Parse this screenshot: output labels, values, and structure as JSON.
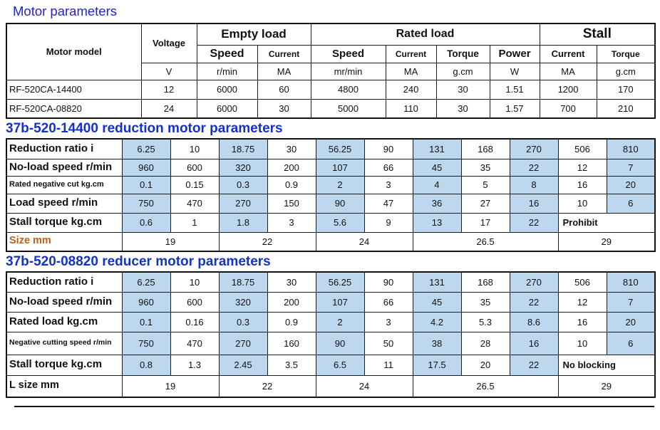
{
  "page": {
    "title": "Motor parameters"
  },
  "colors": {
    "cell_fill_blue": "#BDD7EE",
    "title_blue": "#2323CE",
    "heading_blue": "#1532C8",
    "size_label_orange": "#C06018"
  },
  "motor_table": {
    "col_headers": {
      "motor_model": "Motor model",
      "voltage": "Voltage",
      "empty_load": "Empty load",
      "rated_load": "Rated load",
      "stall": "Stall",
      "empty_speed": "Speed",
      "empty_current": "Current",
      "rated_speed": "Speed",
      "rated_current": "Current",
      "rated_torque": "Torque",
      "rated_power": "Power",
      "stall_current": "Current",
      "stall_torque": "Torque"
    },
    "units": [
      "V",
      "r/min",
      "MA",
      "mr/min",
      "MA",
      "g.cm",
      "W",
      "MA",
      "g.cm"
    ],
    "rows": [
      {
        "model": "RF-520CA-14400",
        "values": [
          "12",
          "6000",
          "60",
          "4800",
          "240",
          "30",
          "1.51",
          "1200",
          "170"
        ]
      },
      {
        "model": "RF-520CA-08820",
        "values": [
          "24",
          "6000",
          "30",
          "5000",
          "110",
          "30",
          "1.57",
          "700",
          "210"
        ]
      }
    ]
  },
  "reduction_table": {
    "heading": "37b-520-14400 reduction motor parameters",
    "rows": [
      {
        "label": "Reduction ratio i",
        "values": [
          "6.25",
          "10",
          "18.75",
          "30",
          "56.25",
          "90",
          "131",
          "168",
          "270",
          "506",
          "810"
        ]
      },
      {
        "label": "No-load speed r/min",
        "values": [
          "960",
          "600",
          "320",
          "200",
          "107",
          "66",
          "45",
          "35",
          "22",
          "12",
          "7"
        ]
      },
      {
        "label": "Rated negative cut kg.cm",
        "values": [
          "0.1",
          "0.15",
          "0.3",
          "0.9",
          "2",
          "3",
          "4",
          "5",
          "8",
          "16",
          "20"
        ]
      },
      {
        "label": "Load speed r/min",
        "values": [
          "750",
          "470",
          "270",
          "150",
          "90",
          "47",
          "36",
          "27",
          "16",
          "10",
          "6"
        ]
      },
      {
        "label": "Stall torque kg.cm",
        "values": [
          "0.6",
          "1",
          "1.8",
          "3",
          "5.6",
          "9",
          "13",
          "17",
          "22"
        ],
        "merged_tail": "Prohibit"
      },
      {
        "label": "Size mm",
        "size_values": [
          "19",
          "22",
          "24",
          "26.5",
          "29"
        ]
      }
    ]
  },
  "reducer_table": {
    "heading": "37b-520-08820 reducer motor parameters",
    "rows": [
      {
        "label": "Reduction ratio i",
        "values": [
          "6.25",
          "10",
          "18.75",
          "30",
          "56.25",
          "90",
          "131",
          "168",
          "270",
          "506",
          "810"
        ]
      },
      {
        "label": "No-load speed r/min",
        "values": [
          "960",
          "600",
          "320",
          "200",
          "107",
          "66",
          "45",
          "35",
          "22",
          "12",
          "7"
        ]
      },
      {
        "label": "Rated load kg.cm",
        "values": [
          "0.1",
          "0.16",
          "0.3",
          "0.9",
          "2",
          "3",
          "4.2",
          "5.3",
          "8.6",
          "16",
          "20"
        ]
      },
      {
        "label": "Negative cutting speed r/min",
        "values": [
          "750",
          "470",
          "270",
          "160",
          "90",
          "50",
          "38",
          "28",
          "16",
          "10",
          "6"
        ]
      },
      {
        "label": "Stall torque kg.cm",
        "values": [
          "0.8",
          "1.3",
          "2.45",
          "3.5",
          "6.5",
          "11",
          "17.5",
          "20",
          "22"
        ],
        "merged_tail": "No blocking"
      },
      {
        "label": "L size mm",
        "size_values": [
          "19",
          "22",
          "24",
          "26.5",
          "29"
        ]
      }
    ]
  }
}
